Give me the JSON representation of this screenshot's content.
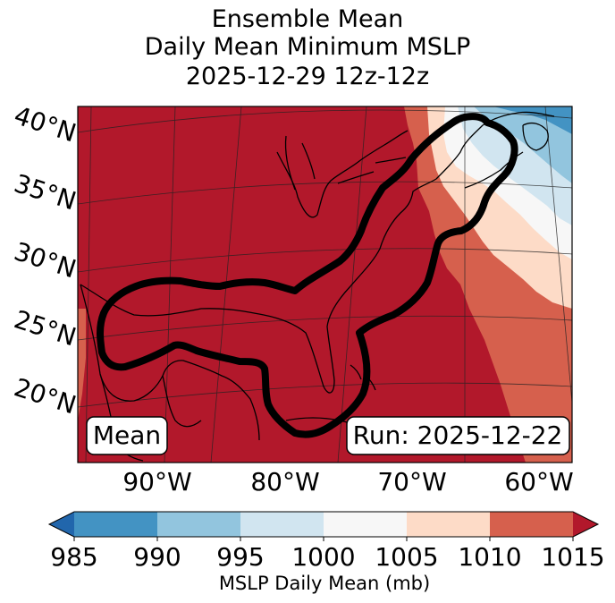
{
  "title": {
    "line1": "Ensemble Mean",
    "line2": "Daily Mean Minimum MSLP",
    "line3": "2025-12-29 12z-12z"
  },
  "map": {
    "lat_labels": [
      "40°N",
      "35°N",
      "30°N",
      "25°N",
      "20°N"
    ],
    "lon_labels": [
      "90°W",
      "80°W",
      "70°W",
      "60°W"
    ],
    "mean_label": "Mean",
    "run_label": "Run: 2025-12-22"
  },
  "colorbar": {
    "ticks": [
      "985",
      "990",
      "995",
      "1000",
      "1005",
      "1010",
      "1015"
    ],
    "label": "MSLP Daily Mean (mb)",
    "bins": [
      {
        "range": "<985",
        "color": "#2166ac"
      },
      {
        "range": "985-990",
        "color": "#4393c3"
      },
      {
        "range": "990-995",
        "color": "#92c5de"
      },
      {
        "range": "995-1000",
        "color": "#d1e5f0"
      },
      {
        "range": "1000-1005",
        "color": "#f7f7f7"
      },
      {
        "range": "1005-1010",
        "color": "#fddbc7"
      },
      {
        "range": "1010-1015",
        "color": "#d6604d"
      },
      {
        "range": ">1015",
        "color": "#b2182b"
      }
    ]
  }
}
